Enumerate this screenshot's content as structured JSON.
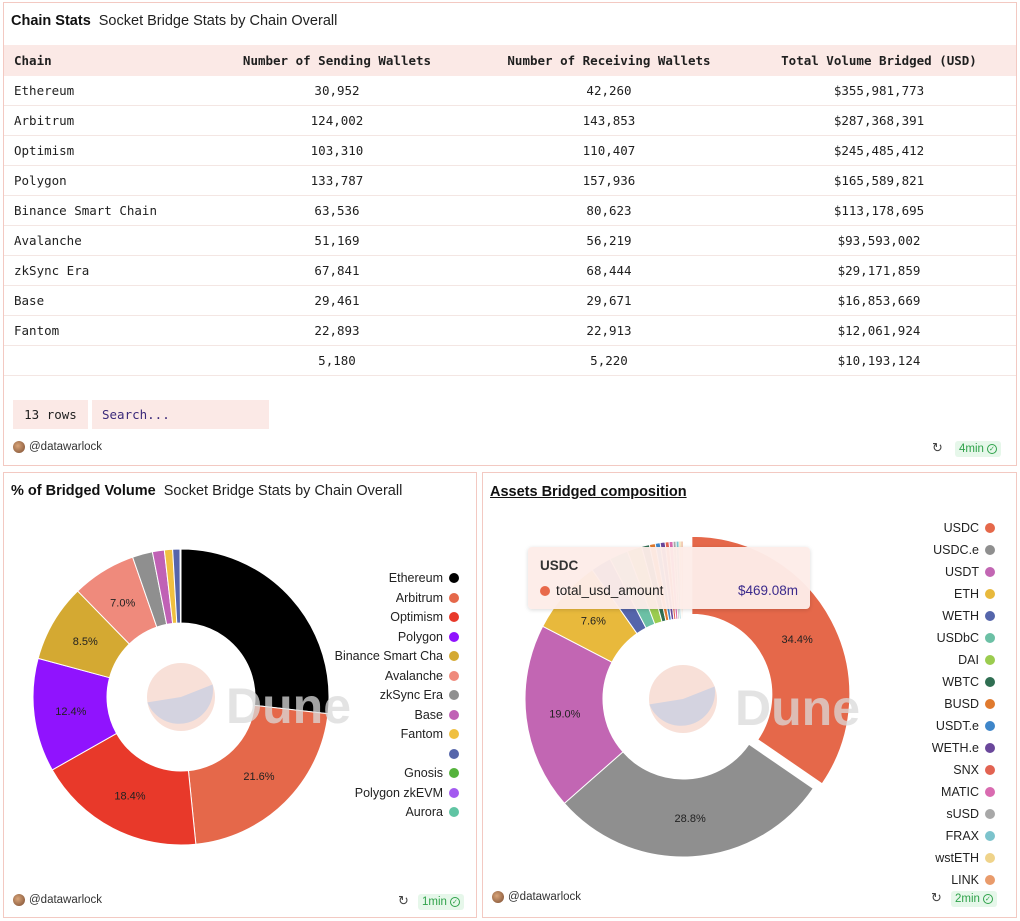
{
  "table_panel": {
    "title": "Chain Stats",
    "subtitle": "Socket Bridge Stats by Chain Overall",
    "columns": [
      "Chain",
      "Number of Sending Wallets",
      "Number of Receiving Wallets",
      "Total Volume Bridged (USD)"
    ],
    "rows": [
      [
        "Ethereum",
        "30,952",
        "42,260",
        "$355,981,773"
      ],
      [
        "Arbitrum",
        "124,002",
        "143,853",
        "$287,368,391"
      ],
      [
        "Optimism",
        "103,310",
        "110,407",
        "$245,485,412"
      ],
      [
        "Polygon",
        "133,787",
        "157,936",
        "$165,589,821"
      ],
      [
        "Binance Smart Chain",
        "63,536",
        "80,623",
        "$113,178,695"
      ],
      [
        "Avalanche",
        "51,169",
        "56,219",
        "$93,593,002"
      ],
      [
        "zkSync Era",
        "67,841",
        "68,444",
        "$29,171,859"
      ],
      [
        "Base",
        "29,461",
        "29,671",
        "$16,853,669"
      ],
      [
        "Fantom",
        "22,893",
        "22,913",
        "$12,061,924"
      ],
      [
        "",
        "5,180",
        "5,220",
        "$10,193,124"
      ]
    ],
    "rows_label": "13 rows",
    "search_placeholder": "Search...",
    "author": "@datawarlock",
    "age": "4min"
  },
  "pie_panel_1": {
    "title": "% of Bridged Volume",
    "subtitle": "Socket Bridge Stats by Chain Overall",
    "author": "@datawarlock",
    "age": "1min",
    "watermark": "Dune"
  },
  "pie_panel_2": {
    "title": "Assets Bridged composition",
    "author": "@datawarlock",
    "age": "2min",
    "watermark": "Dune",
    "tooltip": {
      "title": "USDC",
      "series": "total_usd_amount",
      "value": "$469.08m",
      "color": "#e8694a"
    }
  },
  "chart_data": [
    {
      "type": "pie",
      "title": "% of Bridged Volume",
      "legend_position": "right",
      "categories": [
        "Ethereum",
        "Arbitrum",
        "Optimism",
        "Polygon",
        "Binance Smart Chain",
        "Avalanche",
        "zkSync Era",
        "Base",
        "Fantom",
        "",
        "Gnosis",
        "Polygon zkEVM",
        "Aurora"
      ],
      "legend_labels": [
        "Ethereum",
        "Arbitrum",
        "Optimism",
        "Polygon",
        "Binance Smart Cha",
        "Avalanche",
        "zkSync Era",
        "Base",
        "Fantom",
        "",
        "Gnosis",
        "Polygon zkEVM",
        "Aurora"
      ],
      "values": [
        26.8,
        21.6,
        18.4,
        12.4,
        8.5,
        7.0,
        2.2,
        1.3,
        0.9,
        0.8,
        0.1,
        0.0,
        0.0
      ],
      "labels": [
        "",
        "21.6%",
        "18.4%",
        "12.4%",
        "8.5%",
        "7.0%",
        "",
        "",
        "",
        "",
        "",
        "",
        ""
      ],
      "colors": [
        "#000000",
        "#e5684a",
        "#e8392a",
        "#9013fe",
        "#d4a932",
        "#ef8a7c",
        "#8f8f8f",
        "#c061b5",
        "#f0c040",
        "#5565ab",
        "#55b33c",
        "#a35af0",
        "#60c4a3"
      ]
    },
    {
      "type": "pie",
      "title": "Assets Bridged composition",
      "legend_position": "right",
      "categories": [
        "USDC",
        "USDC.e",
        "USDT",
        "ETH",
        "WETH",
        "USDbC",
        "DAI",
        "WBTC",
        "BUSD",
        "USDT.e",
        "WETH.e",
        "SNX",
        "MATIC",
        "sUSD",
        "FRAX",
        "wstETH",
        "LINK"
      ],
      "values": [
        34.4,
        28.8,
        19.0,
        7.6,
        2.1,
        1.9,
        1.5,
        0.8,
        0.6,
        0.5,
        0.5,
        0.4,
        0.4,
        0.3,
        0.3,
        0.2,
        0.2
      ],
      "labels": [
        "34.4%",
        "28.8%",
        "19.0%",
        "7.6%",
        "",
        "",
        "",
        "",
        "",
        "",
        "",
        "",
        "",
        "",
        "",
        "",
        ""
      ],
      "colors": [
        "#e5684a",
        "#8f8f8f",
        "#c266b3",
        "#e8b93c",
        "#5565ab",
        "#6cc0a5",
        "#9bcc4f",
        "#2f6e52",
        "#e07a2e",
        "#3e86c9",
        "#6a479b",
        "#e26352",
        "#d96bb0",
        "#a8a8a8",
        "#7cc3cc",
        "#efd38a",
        "#e99b6b"
      ]
    }
  ]
}
